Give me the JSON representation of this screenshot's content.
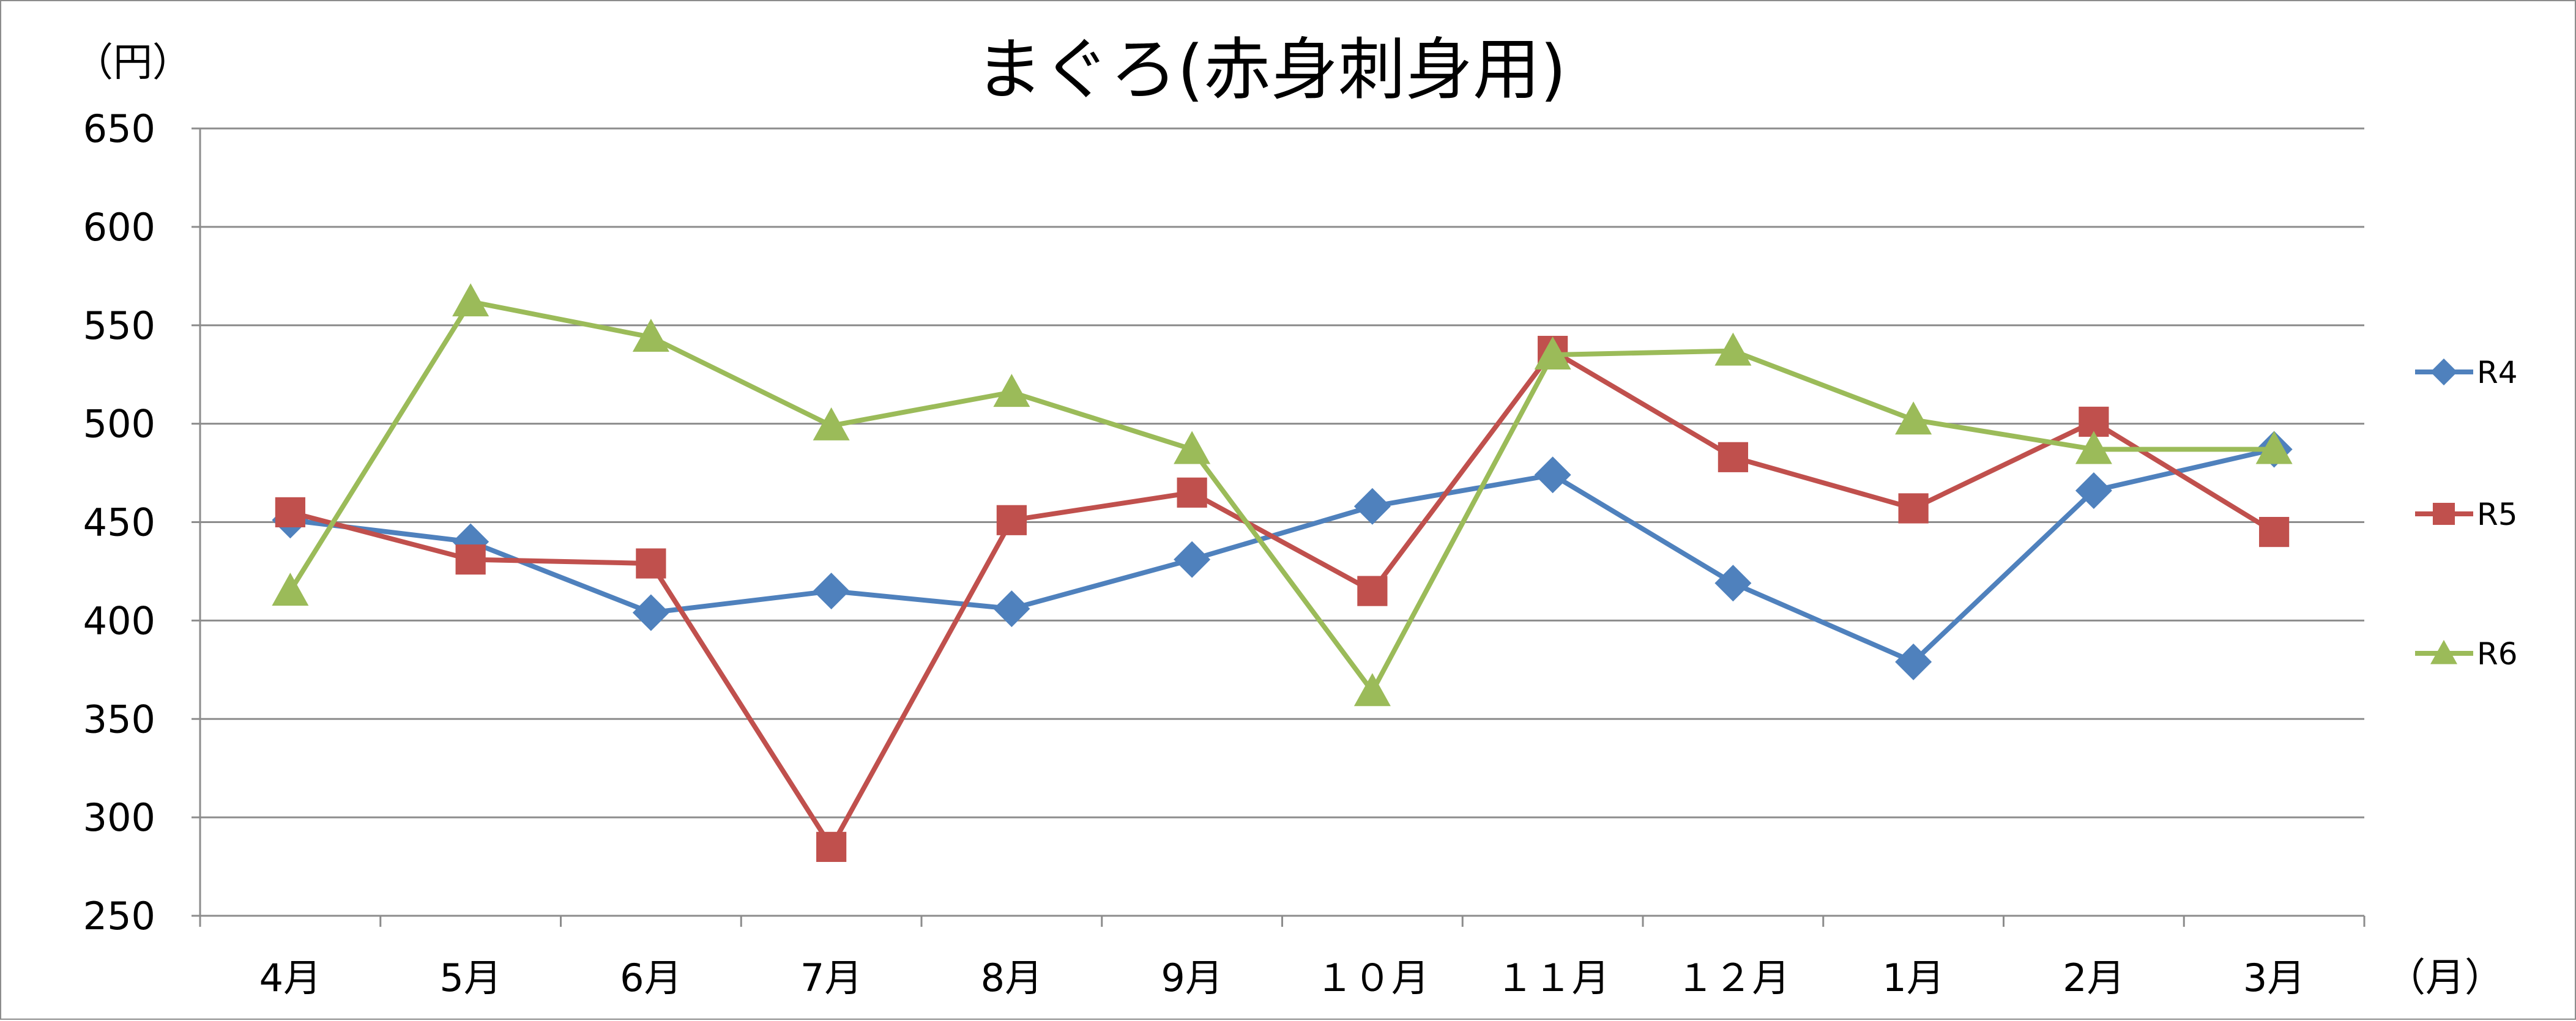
{
  "chart_data": {
    "type": "line",
    "title": "まぐろ(赤身刺身用)",
    "ylabel": "（円）",
    "xlabel": "（月）",
    "ylim": [
      250,
      650
    ],
    "yticks": [
      250,
      300,
      350,
      400,
      450,
      500,
      550,
      600,
      650
    ],
    "yticks_text": [
      "250",
      "300",
      "350",
      "400",
      "450",
      "500",
      "550",
      "600",
      "650"
    ],
    "grid": true,
    "legend_position": "right",
    "categories": [
      "4月",
      "5月",
      "6月",
      "7月",
      "8月",
      "9月",
      "１０月",
      "１１月",
      "１２月",
      "1月",
      "2月",
      "3月"
    ],
    "series": [
      {
        "name": "R4",
        "color": "#4F81BD",
        "marker": "diamond",
        "values": [
          451,
          440,
          404,
          415,
          406,
          431,
          458,
          474,
          419,
          379,
          466,
          487
        ]
      },
      {
        "name": "R5",
        "color": "#C0504D",
        "marker": "square",
        "values": [
          455,
          431,
          429,
          285,
          451,
          465,
          415,
          537,
          483,
          457,
          501,
          445
        ]
      },
      {
        "name": "R6",
        "color": "#9BBB59",
        "marker": "triangle",
        "values": [
          415,
          562,
          544,
          499,
          516,
          487,
          364,
          535,
          537,
          502,
          487,
          487
        ]
      }
    ]
  }
}
